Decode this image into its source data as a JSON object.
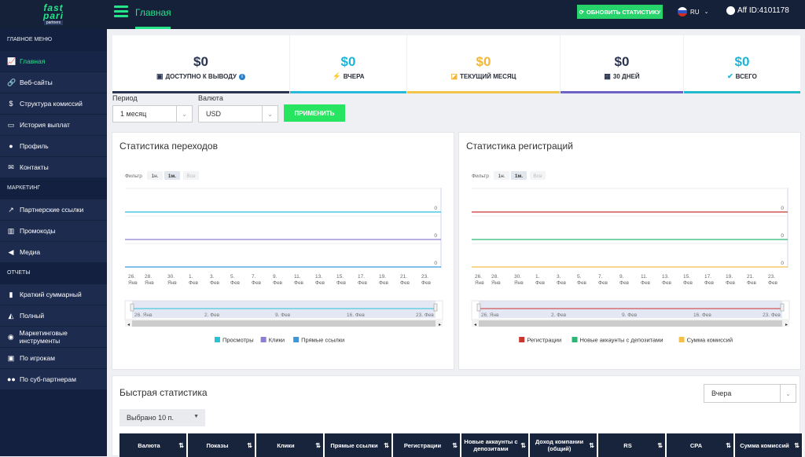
{
  "header": {
    "logo_line1": "fast",
    "logo_line2": "pari",
    "logo_line3": "partners",
    "title": "Главная",
    "refresh_label": "ОБНОВИТЬ СТАТИСТИКУ",
    "lang": "RU",
    "aff_label": "Aff ID:4101178"
  },
  "sidebar": {
    "sections": [
      {
        "title": "ГЛАВНОЕ МЕНЮ",
        "items": [
          {
            "label": "Главная",
            "icon": "chart-line-icon",
            "active": true
          },
          {
            "label": "Веб-сайты",
            "icon": "link-icon"
          },
          {
            "label": "Структура комиссий",
            "icon": "dollar-icon"
          },
          {
            "label": "История выплат",
            "icon": "money-bill-icon"
          },
          {
            "label": "Профиль",
            "icon": "user-icon"
          },
          {
            "label": "Контакты",
            "icon": "envelope-icon"
          }
        ]
      },
      {
        "title": "МАРКЕТИНГ",
        "items": [
          {
            "label": "Партнерские ссылки",
            "icon": "external-link-icon"
          },
          {
            "label": "Промокоды",
            "icon": "barcode-icon"
          },
          {
            "label": "Медиа",
            "icon": "bullhorn-icon"
          }
        ]
      },
      {
        "title": "ОТЧЕТЫ",
        "items": [
          {
            "label": "Краткий суммарный",
            "icon": "chart-bar-icon"
          },
          {
            "label": "Полный",
            "icon": "chart-area-icon"
          },
          {
            "label": "Маркетинговые инструменты",
            "icon": "palette-icon"
          },
          {
            "label": "По игрокам",
            "icon": "id-card-icon"
          },
          {
            "label": "По суб-партнерам",
            "icon": "users-icon"
          }
        ]
      }
    ]
  },
  "stats": [
    {
      "value": "$0",
      "label": "ДОСТУПНО К ВЫВОДУ",
      "color": "#2a3450",
      "border": "#2c3550",
      "icon": "money-icon",
      "info": "i"
    },
    {
      "value": "$0",
      "label": "ВЧЕРА",
      "color": "#1cb4d8",
      "border": "#2ab8da",
      "icon": "bolt-icon"
    },
    {
      "value": "$0",
      "label": "ТЕКУЩИЙ МЕСЯЦ",
      "color": "#f2b63a",
      "border": "#f3c44a",
      "icon": "area-chart-icon"
    },
    {
      "value": "$0",
      "label": "30 ДНЕЙ",
      "color": "#2a3450",
      "border": "#6e62c6",
      "icon": "calendar-check-icon"
    },
    {
      "value": "$0",
      "label": "ВСЕГО",
      "color": "#1cb4d8",
      "border": "#24b8cc",
      "icon": "check-icon"
    }
  ],
  "filters": {
    "period_label": "Период",
    "period_value": "1 месяц",
    "currency_label": "Валюта",
    "currency_value": "USD",
    "apply_label": "ПРИМЕНИТЬ"
  },
  "charts_text": {
    "filter_label": "Фильтр",
    "zoom": [
      "1н.",
      "1м.",
      "Все"
    ],
    "zero": "0"
  },
  "chart_data": [
    {
      "type": "line",
      "title": "Статистика переходов",
      "x": [
        "26. Янв",
        "28. Янв",
        "30. Янв",
        "1. Фев",
        "3. Фев",
        "5. Фев",
        "7. Фев",
        "9. Фев",
        "11. Фев",
        "13. Фев",
        "15. Фев",
        "17. Фев",
        "19. Фев",
        "21. Фев",
        "23. Фев"
      ],
      "navigator_labels": [
        "26. Янв",
        "2. Фев",
        "9. Фев",
        "16. Фев",
        "23. Фев"
      ],
      "series": [
        {
          "name": "Просмотры",
          "color": "#2ac0d6",
          "values": [
            0,
            0,
            0,
            0,
            0,
            0,
            0,
            0,
            0,
            0,
            0,
            0,
            0,
            0,
            0
          ]
        },
        {
          "name": "Клики",
          "color": "#8a7fd0",
          "values": [
            0,
            0,
            0,
            0,
            0,
            0,
            0,
            0,
            0,
            0,
            0,
            0,
            0,
            0,
            0
          ]
        },
        {
          "name": "Прямые ссылки",
          "color": "#3a96dd",
          "values": [
            0,
            0,
            0,
            0,
            0,
            0,
            0,
            0,
            0,
            0,
            0,
            0,
            0,
            0,
            0
          ]
        }
      ],
      "legend": "bottom"
    },
    {
      "type": "line",
      "title": "Статистика регистраций",
      "x": [
        "26. Янв",
        "28. Янв",
        "30. Янв",
        "1. Фев",
        "3. Фев",
        "5. Фев",
        "7. Фев",
        "9. Фев",
        "11. Фев",
        "13. Фев",
        "15. Фев",
        "17. Фев",
        "19. Фев",
        "21. Фев",
        "23. Фев"
      ],
      "navigator_labels": [
        "26. Янв",
        "2. Фев",
        "9. Фев",
        "16. Фев",
        "23. Фев"
      ],
      "series": [
        {
          "name": "Регистрации",
          "color": "#c9352f",
          "values": [
            0,
            0,
            0,
            0,
            0,
            0,
            0,
            0,
            0,
            0,
            0,
            0,
            0,
            0,
            0
          ]
        },
        {
          "name": "Новые аккаунты с депозитами",
          "color": "#2bb673",
          "values": [
            0,
            0,
            0,
            0,
            0,
            0,
            0,
            0,
            0,
            0,
            0,
            0,
            0,
            0,
            0
          ]
        },
        {
          "name": "Сумма комиссий",
          "color": "#f5c04a",
          "values": [
            0,
            0,
            0,
            0,
            0,
            0,
            0,
            0,
            0,
            0,
            0,
            0,
            0,
            0,
            0
          ]
        }
      ],
      "legend": "bottom"
    }
  ],
  "quick": {
    "title": "Быстрая статистика",
    "period": "Вчера",
    "picked": "Выбрано 10 п.",
    "columns": [
      "Валюта",
      "Показы",
      "Клики",
      "Прямые ссылки",
      "Регистрации",
      "Новые аккаунты с депозитами",
      "Доход компании (общий)",
      "RS",
      "CPA",
      "Сумма комиссий"
    ]
  }
}
